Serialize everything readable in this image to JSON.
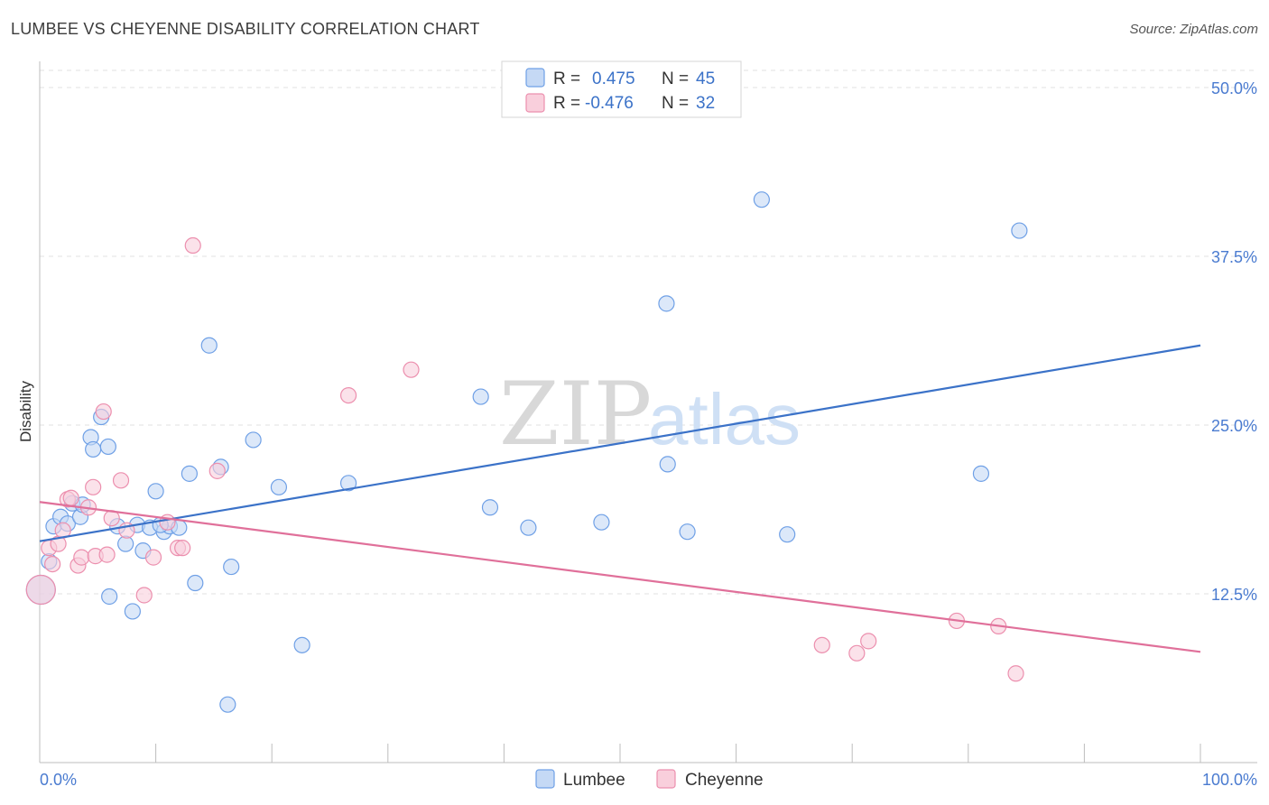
{
  "header": {
    "title": "LUMBEE VS CHEYENNE DISABILITY CORRELATION CHART",
    "source": "Source: ZipAtlas.com"
  },
  "legend_box": {
    "rows": [
      {
        "r_label": "R =",
        "r_value": "0.475",
        "n_label": "N =",
        "n_value": "45",
        "color": "#6fa0e6",
        "fill": "#c5d9f5"
      },
      {
        "r_label": "R =",
        "r_value": "-0.476",
        "n_label": "N =",
        "n_value": "32",
        "color": "#ec8fae",
        "fill": "#f9cfdc"
      }
    ]
  },
  "watermark": {
    "zip": "ZIP",
    "atlas": "atlas"
  },
  "chart_data": {
    "type": "scatter",
    "title": "LUMBEE VS CHEYENNE DISABILITY CORRELATION CHART",
    "xlabel": "",
    "ylabel": "Disability",
    "xlim": [
      0,
      100
    ],
    "ylim": [
      0,
      52
    ],
    "x_tick_labels": [
      "0.0%",
      "100.0%"
    ],
    "y_ticks": [
      12.5,
      25.0,
      37.5,
      50.0
    ],
    "y_tick_labels": [
      "12.5%",
      "25.0%",
      "37.5%",
      "50.0%"
    ],
    "grid": "horizontal-dashed",
    "legend": "bottom-center",
    "series": [
      {
        "name": "Lumbee",
        "color": "#3b72c8",
        "fill": "#c5d9f5",
        "stroke": "#6fa0e6",
        "points": [
          {
            "x": 0.1,
            "y": 12.8,
            "big": true
          },
          {
            "x": 0.8,
            "y": 14.9
          },
          {
            "x": 1.2,
            "y": 17.5
          },
          {
            "x": 1.8,
            "y": 18.2
          },
          {
            "x": 2.4,
            "y": 17.7
          },
          {
            "x": 2.8,
            "y": 19.2
          },
          {
            "x": 3.5,
            "y": 18.2
          },
          {
            "x": 3.7,
            "y": 19.1
          },
          {
            "x": 4.4,
            "y": 24.1
          },
          {
            "x": 4.6,
            "y": 23.2
          },
          {
            "x": 5.3,
            "y": 25.6
          },
          {
            "x": 5.9,
            "y": 23.4
          },
          {
            "x": 6.0,
            "y": 12.3
          },
          {
            "x": 6.7,
            "y": 17.5
          },
          {
            "x": 7.4,
            "y": 16.2
          },
          {
            "x": 8.0,
            "y": 11.2
          },
          {
            "x": 8.4,
            "y": 17.6
          },
          {
            "x": 8.9,
            "y": 15.7
          },
          {
            "x": 9.5,
            "y": 17.4
          },
          {
            "x": 10.0,
            "y": 20.1
          },
          {
            "x": 10.7,
            "y": 17.1
          },
          {
            "x": 11.2,
            "y": 17.5
          },
          {
            "x": 12.0,
            "y": 17.4
          },
          {
            "x": 12.9,
            "y": 21.4
          },
          {
            "x": 13.4,
            "y": 13.3
          },
          {
            "x": 14.6,
            "y": 30.9
          },
          {
            "x": 15.6,
            "y": 21.9
          },
          {
            "x": 16.5,
            "y": 14.5
          },
          {
            "x": 18.4,
            "y": 23.9
          },
          {
            "x": 20.6,
            "y": 20.4
          },
          {
            "x": 22.6,
            "y": 8.7
          },
          {
            "x": 26.6,
            "y": 20.7
          },
          {
            "x": 38.0,
            "y": 27.1
          },
          {
            "x": 38.8,
            "y": 18.9
          },
          {
            "x": 42.1,
            "y": 17.4
          },
          {
            "x": 48.4,
            "y": 17.8
          },
          {
            "x": 54.0,
            "y": 34.0
          },
          {
            "x": 54.1,
            "y": 22.1
          },
          {
            "x": 55.8,
            "y": 17.1
          },
          {
            "x": 62.2,
            "y": 41.7
          },
          {
            "x": 64.4,
            "y": 16.9
          },
          {
            "x": 81.1,
            "y": 21.4
          },
          {
            "x": 84.4,
            "y": 39.4
          },
          {
            "x": 16.2,
            "y": 4.3
          },
          {
            "x": 10.4,
            "y": 17.6
          }
        ],
        "trend": {
          "x0": 0,
          "y0": 16.4,
          "x1": 100,
          "y1": 30.9
        }
      },
      {
        "name": "Cheyenne",
        "color": "#e0709a",
        "fill": "#f9cfdc",
        "stroke": "#ec8fae",
        "points": [
          {
            "x": 0.1,
            "y": 12.8,
            "big": true
          },
          {
            "x": 0.8,
            "y": 15.9
          },
          {
            "x": 1.1,
            "y": 14.7
          },
          {
            "x": 1.6,
            "y": 16.2
          },
          {
            "x": 2.0,
            "y": 17.2
          },
          {
            "x": 2.4,
            "y": 19.5
          },
          {
            "x": 2.7,
            "y": 19.6
          },
          {
            "x": 3.3,
            "y": 14.6
          },
          {
            "x": 3.6,
            "y": 15.2
          },
          {
            "x": 4.2,
            "y": 18.9
          },
          {
            "x": 4.6,
            "y": 20.4
          },
          {
            "x": 4.8,
            "y": 15.3
          },
          {
            "x": 5.5,
            "y": 26.0
          },
          {
            "x": 5.8,
            "y": 15.4
          },
          {
            "x": 6.2,
            "y": 18.1
          },
          {
            "x": 7.0,
            "y": 20.9
          },
          {
            "x": 7.5,
            "y": 17.2
          },
          {
            "x": 9.8,
            "y": 15.2
          },
          {
            "x": 9.0,
            "y": 12.4
          },
          {
            "x": 11.9,
            "y": 15.9
          },
          {
            "x": 12.3,
            "y": 15.9
          },
          {
            "x": 13.2,
            "y": 38.3
          },
          {
            "x": 15.3,
            "y": 21.6
          },
          {
            "x": 26.6,
            "y": 27.2
          },
          {
            "x": 32.0,
            "y": 29.1
          },
          {
            "x": 67.4,
            "y": 8.7
          },
          {
            "x": 70.4,
            "y": 8.1
          },
          {
            "x": 71.4,
            "y": 9.0
          },
          {
            "x": 79.0,
            "y": 10.5
          },
          {
            "x": 82.6,
            "y": 10.1
          },
          {
            "x": 84.1,
            "y": 6.6
          },
          {
            "x": 11.0,
            "y": 17.8
          }
        ],
        "trend": {
          "x0": 0,
          "y0": 19.3,
          "x1": 100,
          "y1": 8.2
        }
      }
    ]
  }
}
